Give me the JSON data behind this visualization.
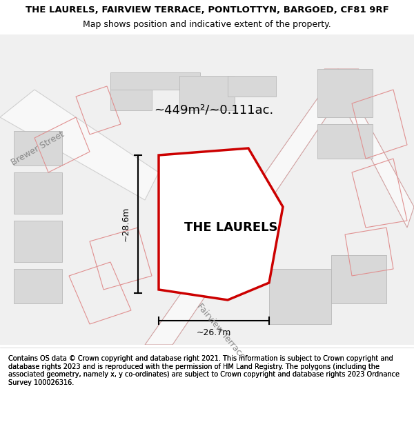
{
  "title_line1": "THE LAURELS, FAIRVIEW TERRACE, PONTLOTTYN, BARGOED, CF81 9RF",
  "title_line2": "Map shows position and indicative extent of the property.",
  "footer": "Contains OS data © Crown copyright and database right 2021. This information is subject to Crown copyright and database rights 2023 and is reproduced with the permission of HM Land Registry. The polygons (including the associated geometry, namely x, y co-ordinates) are subject to Crown copyright and database rights 2023 Ordnance Survey 100026316.",
  "property_label": "THE LAURELS",
  "area_label": "~449m²/~0.111ac.",
  "dim_h": "~26.7m",
  "dim_v": "~28.6m",
  "street_label_1": "Brewer Street",
  "street_label_2": "Fairview Terrace",
  "map_bg": "#f5f5f5",
  "property_polygon_color": "#cc0000",
  "building_fill": "#d8d8d8",
  "road_fill": "#ffffff",
  "road_outline": "#e8a0a0",
  "other_polygon_stroke": "#e8a0a0",
  "title_bg": "#ffffff",
  "footer_bg": "#ffffff"
}
